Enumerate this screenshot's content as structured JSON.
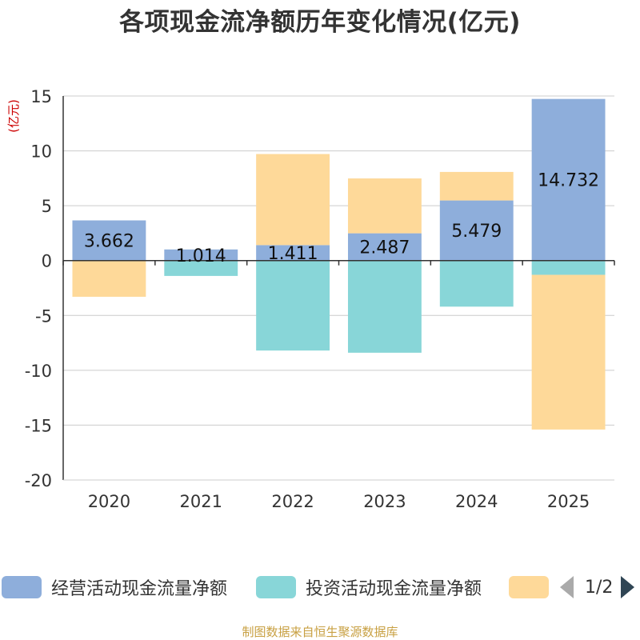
{
  "title": "各项现金流净额历年变化情况(亿元)",
  "source": "制图数据来自恒生聚源数据库",
  "pager": {
    "text": "1/2",
    "prev_icon": "triangle-left-icon",
    "next_icon": "triangle-right-icon"
  },
  "colors": {
    "operating": "#8eaedb",
    "investing": "#88d6d8",
    "financing": "#fed999",
    "axis_unit": "#cc0000",
    "grid": "#cccccc",
    "axis": "#333333",
    "text": "#333333",
    "source": "#c8a042"
  },
  "chart_data": {
    "type": "bar",
    "stacked": true,
    "title": "各项现金流净额历年变化情况(亿元)",
    "ylabel": "(亿元)",
    "ylim": [
      -20,
      15
    ],
    "yticks": [
      "15",
      "10",
      "5",
      "0",
      "-5",
      "-10",
      "-15",
      "-20"
    ],
    "ytick_values": [
      15,
      10,
      5,
      0,
      -5,
      -10,
      -15,
      -20
    ],
    "categories": [
      "2020",
      "2021",
      "2022",
      "2023",
      "2024",
      "2025"
    ],
    "series": [
      {
        "name": "经营活动现金流量净额",
        "values": [
          3.662,
          1.014,
          1.411,
          2.487,
          5.479,
          14.732
        ],
        "labels": [
          "3.662",
          "1.014",
          "1.411",
          "2.487",
          "5.479",
          "14.732"
        ]
      },
      {
        "name": "投资活动现金流量净额",
        "values": [
          0,
          -1.4,
          -8.2,
          -8.4,
          -4.2,
          -1.3
        ]
      },
      {
        "name": "",
        "values": [
          -3.3,
          0,
          8.3,
          5.0,
          2.6,
          -14.1
        ]
      }
    ],
    "legend": [
      "经营活动现金流量净额",
      "投资活动现金流量净额",
      ""
    ],
    "legend_position": "bottom"
  }
}
